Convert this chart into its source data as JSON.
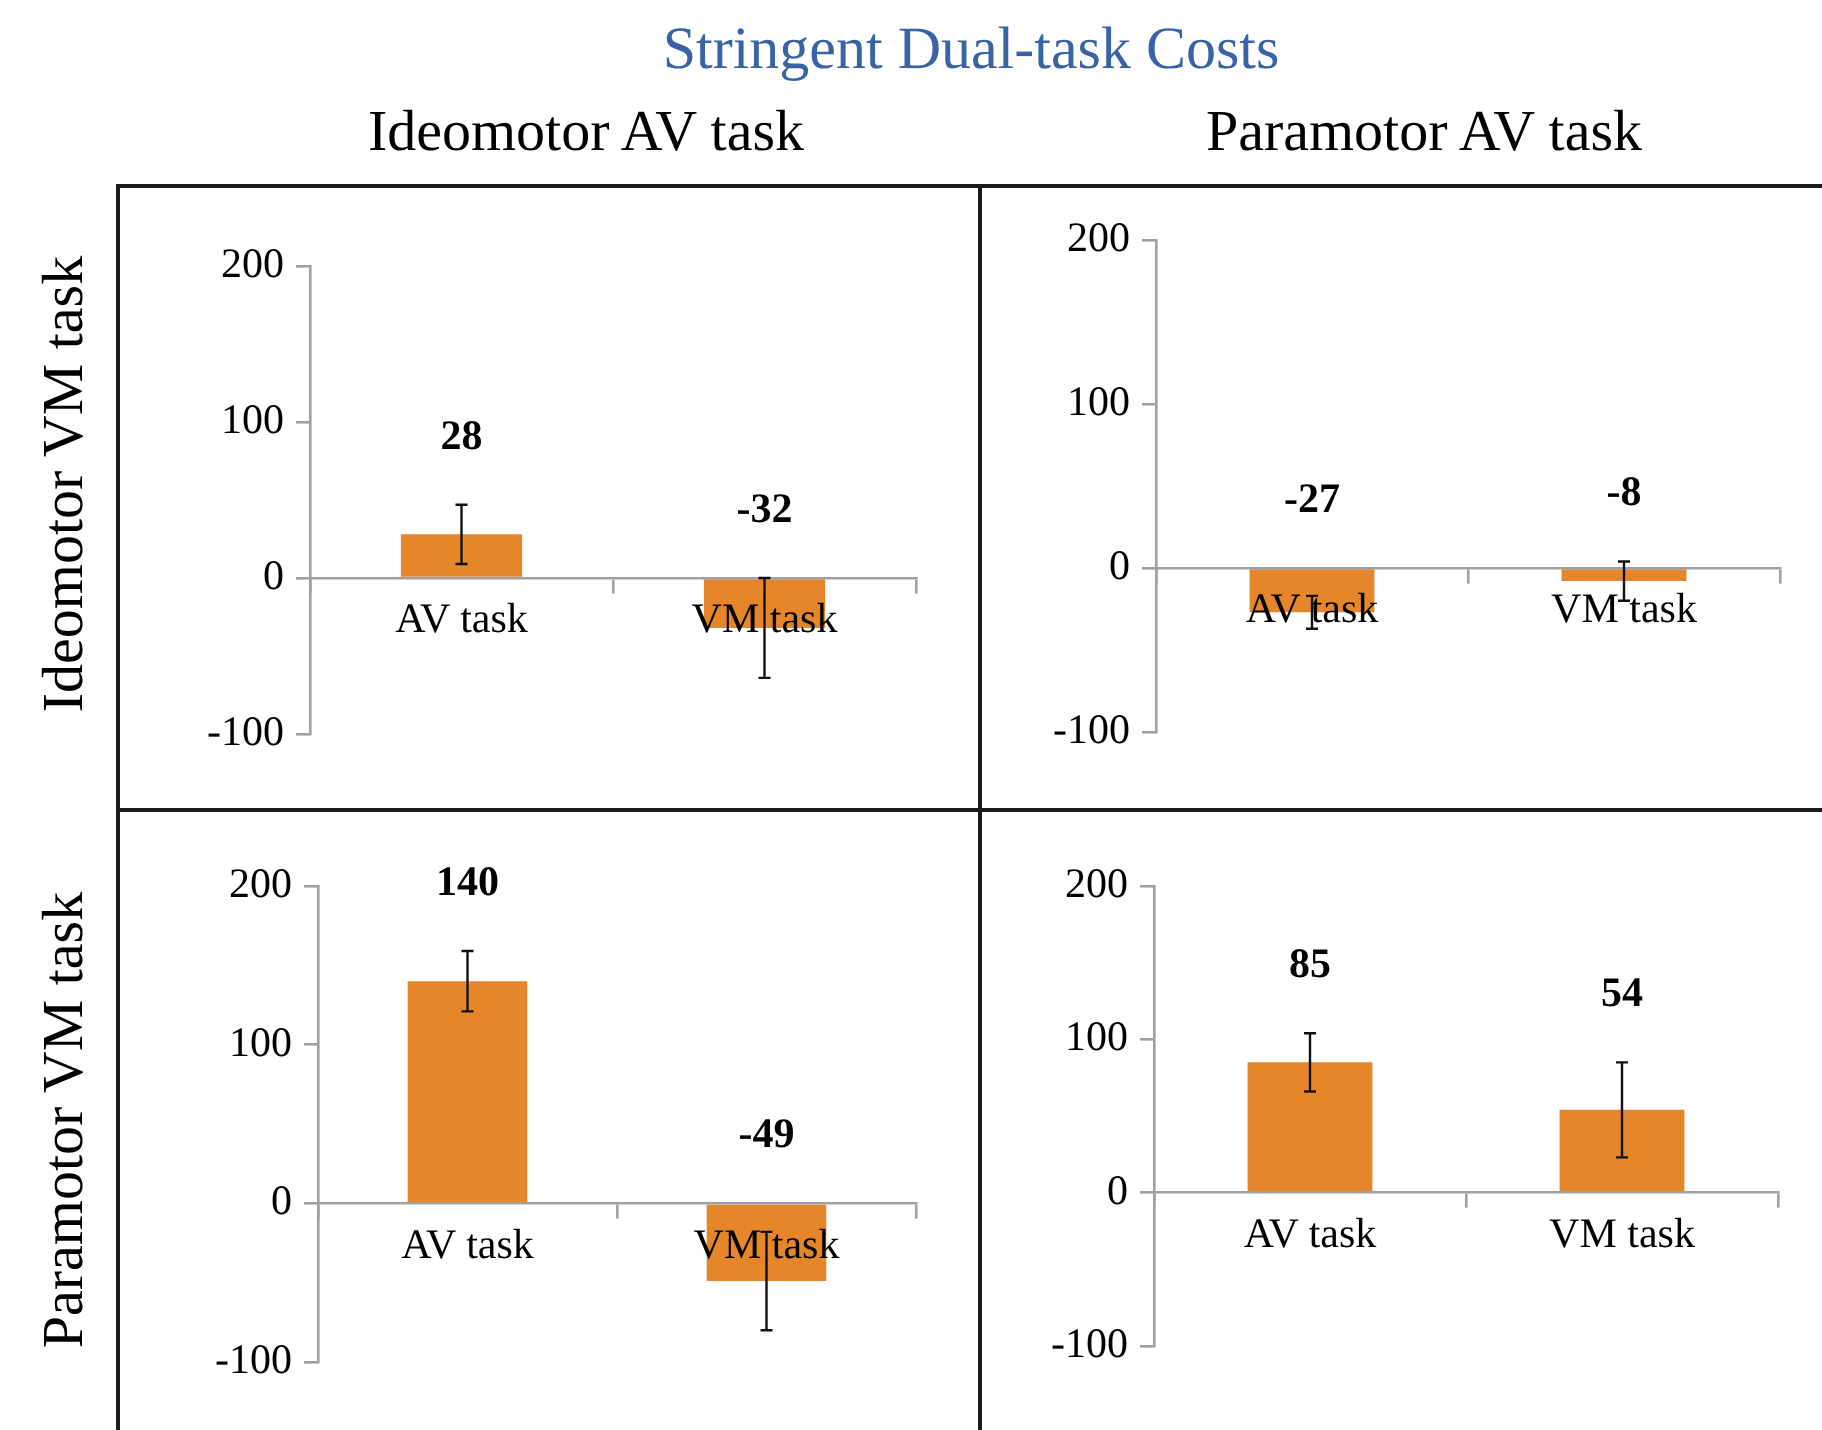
{
  "chart_data": [
    {
      "type": "bar",
      "title": "Stringent Dual-task Costs",
      "subtitle": "Ideomotor AV task",
      "ylabel": "Ideomotor VM task",
      "categories": [
        "AV task",
        "VM task"
      ],
      "values": [
        28,
        -32
      ],
      "errors": [
        19,
        32
      ],
      "color": "#e6862a",
      "ylim": [
        -100,
        200
      ],
      "yticks": [
        -100,
        0,
        100,
        200
      ],
      "data_labels": true
    },
    {
      "type": "bar",
      "subtitle": "Paramotor AV task",
      "categories": [
        "AV task",
        "VM task"
      ],
      "values": [
        -27,
        -8
      ],
      "errors": [
        10,
        12
      ],
      "color": "#e6862a",
      "ylim": [
        -100,
        200
      ],
      "yticks": [
        -100,
        0,
        100,
        200
      ],
      "data_labels": true
    },
    {
      "type": "bar",
      "ylabel": "Paramotor VM task",
      "categories": [
        "AV task",
        "VM task"
      ],
      "values": [
        140,
        -49
      ],
      "errors": [
        19,
        31
      ],
      "color": "#e6862a",
      "ylim": [
        -100,
        200
      ],
      "yticks": [
        -100,
        0,
        100,
        200
      ],
      "data_labels": true
    },
    {
      "type": "bar",
      "categories": [
        "AV task",
        "VM task"
      ],
      "values": [
        85,
        54
      ],
      "errors": [
        19,
        31
      ],
      "color": "#e6862a",
      "ylim": [
        -100,
        200
      ],
      "yticks": [
        -100,
        0,
        100,
        200
      ],
      "data_labels": true
    }
  ]
}
